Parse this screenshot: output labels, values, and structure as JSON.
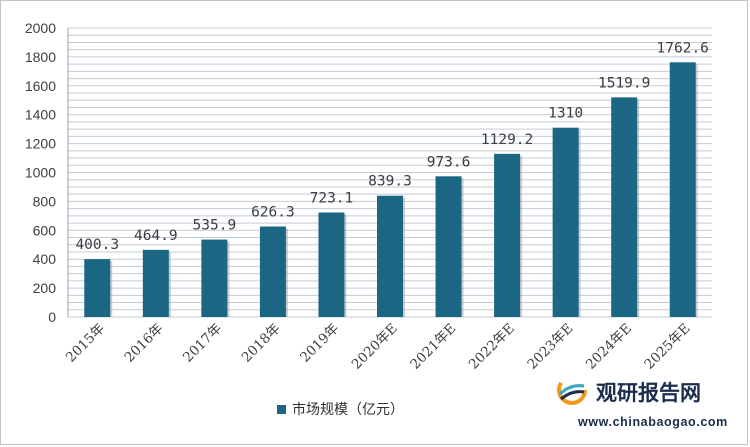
{
  "chart_data": {
    "type": "bar",
    "categories": [
      "2015年",
      "2016年",
      "2017年",
      "2018年",
      "2019年",
      "2020年E",
      "2021年E",
      "2022年E",
      "2023年E",
      "2024年E",
      "2025年E"
    ],
    "series": [
      {
        "name": "市场规模（亿元）",
        "values": [
          400.3,
          464.9,
          535.9,
          626.3,
          723.1,
          839.3,
          973.6,
          1129.2,
          1310,
          1519.9,
          1762.6
        ],
        "labels": [
          "400.3",
          "464.9",
          "535.9",
          "626.3",
          "723.1",
          "839.3",
          "973.6",
          "1129.2",
          "1310",
          "1519.9",
          "1762.6"
        ],
        "color": "#1b6683"
      }
    ],
    "ylim": [
      0,
      2000
    ],
    "yticks": [
      0,
      200,
      400,
      600,
      800,
      1000,
      1200,
      1400,
      1600,
      1800,
      2000
    ],
    "grid": true,
    "gridline_color": "#c2ccd6",
    "legend_position": "bottom"
  },
  "watermark": {
    "name_cn": "观研报告网",
    "url": "www.chinabaogao.com",
    "logo_icon": "chinabaogao-logo-icon",
    "colors": {
      "blue": "#1b2c4c",
      "orange": "#f39a1e",
      "teal": "#3aa6c4"
    }
  }
}
